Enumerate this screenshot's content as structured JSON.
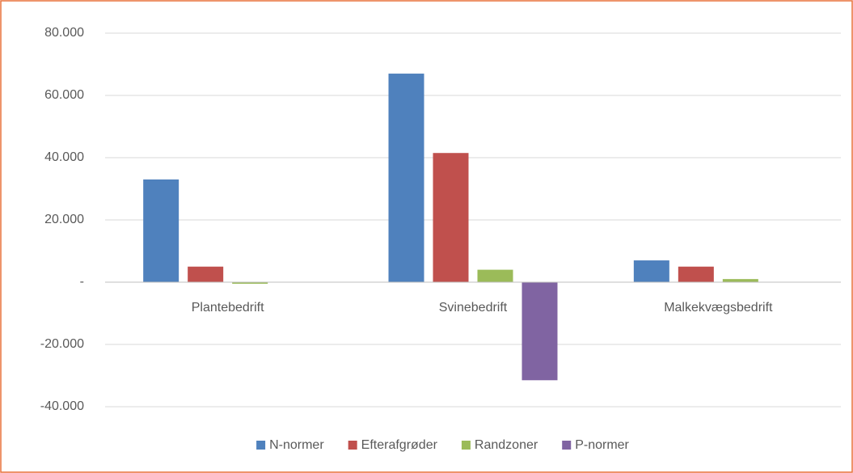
{
  "chart_data": {
    "type": "bar",
    "categories": [
      "Plantebedrift",
      "Svinebedrift",
      "Malkekvægsbedrift"
    ],
    "series": [
      {
        "name": "N-normer",
        "color": "#4f81bd",
        "values": [
          33000,
          67000,
          7000
        ]
      },
      {
        "name": "Efterafgrøder",
        "color": "#c0504d",
        "values": [
          5000,
          41500,
          5000
        ]
      },
      {
        "name": "Randzoner",
        "color": "#9bbb59",
        "values": [
          -500,
          4000,
          1000
        ]
      },
      {
        "name": "P-normer",
        "color": "#8064a2",
        "values": [
          0,
          -31500,
          0
        ]
      }
    ],
    "ylim": [
      -40000,
      80000
    ],
    "yticks": [
      {
        "value": -40000,
        "label": "-40.000"
      },
      {
        "value": -20000,
        "label": "-20.000"
      },
      {
        "value": 0,
        "label": "-"
      },
      {
        "value": 20000,
        "label": "20.000"
      },
      {
        "value": 40000,
        "label": "40.000"
      },
      {
        "value": 60000,
        "label": "60.000"
      },
      {
        "value": 80000,
        "label": "80.000"
      }
    ],
    "grid": true,
    "legend": "bottom"
  }
}
